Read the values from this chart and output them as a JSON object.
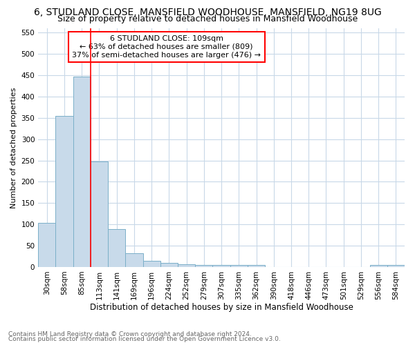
{
  "title1": "6, STUDLAND CLOSE, MANSFIELD WOODHOUSE, MANSFIELD, NG19 8UG",
  "title2": "Size of property relative to detached houses in Mansfield Woodhouse",
  "xlabel": "Distribution of detached houses by size in Mansfield Woodhouse",
  "ylabel": "Number of detached properties",
  "footer1": "Contains HM Land Registry data © Crown copyright and database right 2024.",
  "footer2": "Contains public sector information licensed under the Open Government Licence v3.0.",
  "categories": [
    "30sqm",
    "58sqm",
    "85sqm",
    "113sqm",
    "141sqm",
    "169sqm",
    "196sqm",
    "224sqm",
    "252sqm",
    "279sqm",
    "307sqm",
    "335sqm",
    "362sqm",
    "390sqm",
    "418sqm",
    "446sqm",
    "473sqm",
    "501sqm",
    "529sqm",
    "556sqm",
    "584sqm"
  ],
  "values": [
    104,
    354,
    447,
    247,
    89,
    32,
    15,
    9,
    6,
    4,
    4,
    4,
    5,
    0,
    0,
    0,
    0,
    0,
    0,
    4,
    4
  ],
  "bar_color": "#c8daea",
  "bar_edge_color": "#7aafc8",
  "bar_edge_width": 0.7,
  "annotation_title": "6 STUDLAND CLOSE: 109sqm",
  "annotation_line1": "← 63% of detached houses are smaller (809)",
  "annotation_line2": "37% of semi-detached houses are larger (476) →",
  "ylim": [
    0,
    560
  ],
  "yticks": [
    0,
    50,
    100,
    150,
    200,
    250,
    300,
    350,
    400,
    450,
    500,
    550
  ],
  "bg_color": "#ffffff",
  "grid_color": "#c8d8e8",
  "title1_fontsize": 10,
  "title2_fontsize": 9,
  "xlabel_fontsize": 8.5,
  "ylabel_fontsize": 8,
  "tick_fontsize": 7.5,
  "footer_fontsize": 6.5
}
